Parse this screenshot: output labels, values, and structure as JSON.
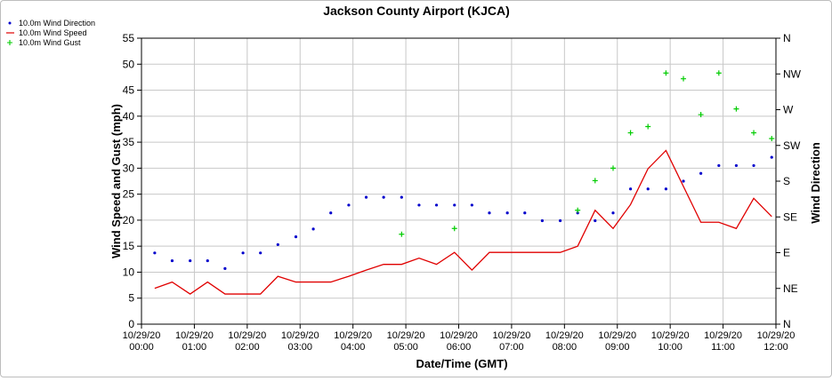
{
  "chart_data": {
    "type": "line",
    "title": "Jackson County Airport (KJCA)",
    "xlabel": "Date/Time (GMT)",
    "ylabel": "Wind Speed and Gust (mph)",
    "y2label": "Wind Direction",
    "ylim": [
      0,
      55
    ],
    "yticks": [
      "0",
      "5",
      "10",
      "15",
      "20",
      "25",
      "30",
      "35",
      "40",
      "45",
      "50",
      "55"
    ],
    "y2ticks": [
      "N",
      "NE",
      "E",
      "SE",
      "S",
      "SW",
      "W",
      "NW",
      "N"
    ],
    "xlim_hours": [
      0,
      12
    ],
    "xticks": [
      [
        "10/29/20",
        "00:00"
      ],
      [
        "10/29/20",
        "01:00"
      ],
      [
        "10/29/20",
        "02:00"
      ],
      [
        "10/29/20",
        "03:00"
      ],
      [
        "10/29/20",
        "04:00"
      ],
      [
        "10/29/20",
        "05:00"
      ],
      [
        "10/29/20",
        "06:00"
      ],
      [
        "10/29/20",
        "07:00"
      ],
      [
        "10/29/20",
        "08:00"
      ],
      [
        "10/29/20",
        "09:00"
      ],
      [
        "10/29/20",
        "10:00"
      ],
      [
        "10/29/20",
        "11:00"
      ],
      [
        "10/29/20",
        "12:00"
      ]
    ],
    "grid": true,
    "legend": "top-left outside",
    "series": [
      {
        "name": "10.0m Wind Direction",
        "kind": "dots",
        "color": "#0000cc",
        "x_hours": [
          0.25,
          0.58,
          0.92,
          1.25,
          1.58,
          1.92,
          2.25,
          2.58,
          2.92,
          3.25,
          3.58,
          3.92,
          4.25,
          4.58,
          4.92,
          5.25,
          5.58,
          5.92,
          6.25,
          6.58,
          6.92,
          7.25,
          7.58,
          7.92,
          8.25,
          8.58,
          8.92,
          9.25,
          9.58,
          9.92,
          10.25,
          10.58,
          10.92,
          11.25,
          11.58,
          11.92
        ],
        "values": [
          13.7,
          12.2,
          12.2,
          12.2,
          10.7,
          13.7,
          13.7,
          15.3,
          16.8,
          18.3,
          21.4,
          22.9,
          24.4,
          24.4,
          24.4,
          22.9,
          22.9,
          22.9,
          22.9,
          21.4,
          21.4,
          21.4,
          19.9,
          19.9,
          21.4,
          19.9,
          21.4,
          26.0,
          26.0,
          26.0,
          27.5,
          29.0,
          30.5,
          30.5,
          30.5,
          32.1
        ]
      },
      {
        "name": "10.0m Wind Speed",
        "kind": "line",
        "color": "#e00000",
        "x_hours": [
          0.25,
          0.58,
          0.92,
          1.25,
          1.58,
          1.92,
          2.25,
          2.58,
          2.92,
          3.25,
          3.58,
          3.92,
          4.25,
          4.58,
          4.92,
          5.25,
          5.58,
          5.92,
          6.25,
          6.58,
          6.92,
          7.25,
          7.58,
          7.92,
          8.25,
          8.58,
          8.92,
          9.25,
          9.58,
          9.92,
          10.25,
          10.58,
          10.92,
          11.25,
          11.58,
          11.92
        ],
        "values": [
          6.9,
          8.1,
          5.8,
          8.1,
          5.8,
          5.8,
          5.8,
          9.2,
          8.1,
          8.1,
          8.1,
          9.2,
          10.4,
          11.5,
          11.5,
          12.7,
          11.5,
          13.8,
          10.4,
          13.8,
          13.8,
          13.8,
          13.8,
          13.8,
          15.0,
          21.9,
          18.4,
          23.0,
          29.9,
          33.4,
          26.5,
          19.6,
          19.6,
          18.4,
          24.2,
          20.7
        ]
      },
      {
        "name": "10.0m Wind Gust",
        "kind": "plus",
        "color": "#00cc00",
        "x_hours": [
          4.92,
          5.92,
          8.25,
          8.58,
          8.92,
          9.25,
          9.58,
          9.92,
          10.25,
          10.58,
          10.92,
          11.25,
          11.58,
          11.92
        ],
        "values": [
          17.3,
          18.4,
          21.9,
          27.6,
          30.0,
          36.8,
          38.0,
          48.3,
          47.2,
          40.3,
          48.3,
          41.4,
          36.8,
          35.7
        ]
      }
    ]
  }
}
